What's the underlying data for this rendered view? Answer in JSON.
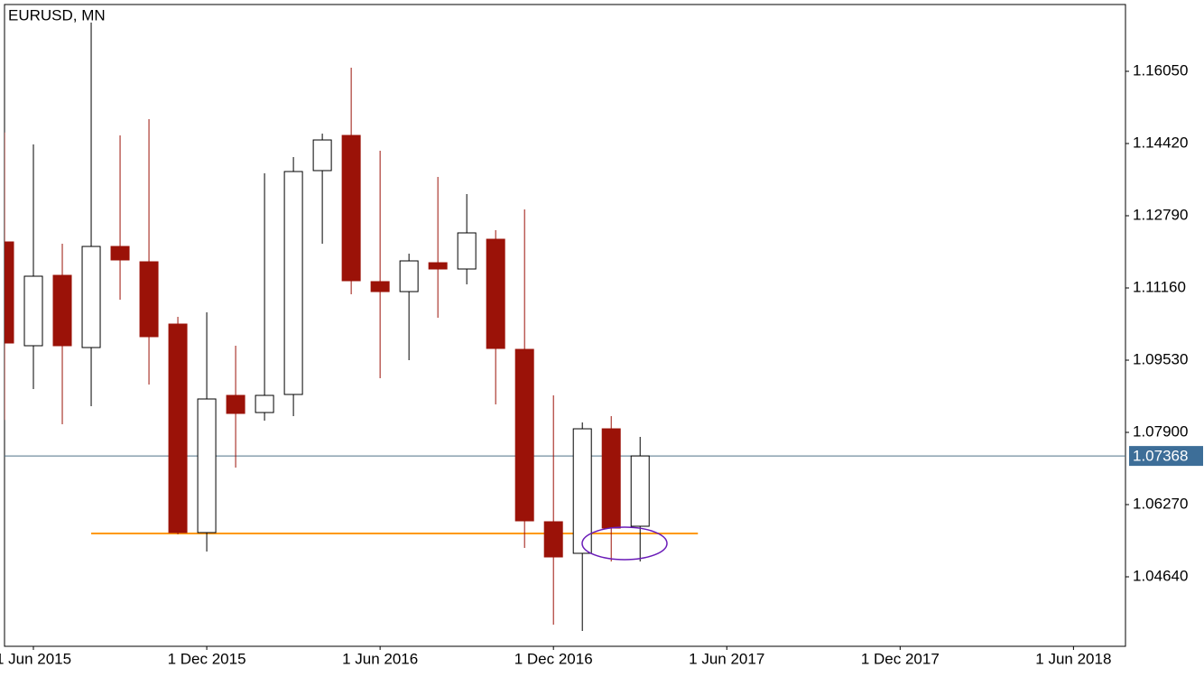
{
  "chart_data": {
    "type": "candlestick",
    "title": "EURUSD, MN",
    "x": [
      "2015-05-01",
      "2015-06-01",
      "2015-07-01",
      "2015-08-01",
      "2015-09-01",
      "2015-10-01",
      "2015-11-01",
      "2015-12-01",
      "2016-01-01",
      "2016-02-01",
      "2016-03-01",
      "2016-04-01",
      "2016-05-01",
      "2016-06-01",
      "2016-07-01",
      "2016-08-01",
      "2016-09-01",
      "2016-10-01",
      "2016-11-01",
      "2016-12-01",
      "2017-01-01",
      "2017-02-01",
      "2017-03-01"
    ],
    "open": [
      1.12199,
      1.09856,
      1.11445,
      1.09815,
      1.12097,
      1.11751,
      1.10345,
      1.05638,
      1.08735,
      1.08348,
      1.08756,
      1.13809,
      1.14603,
      1.11303,
      1.11078,
      1.1173,
      1.11588,
      1.1226,
      1.09774,
      1.05883,
      1.0517,
      1.07981,
      1.05781
    ],
    "high": [
      1.1467,
      1.144,
      1.12158,
      1.1715,
      1.14603,
      1.1497,
      1.10508,
      1.1061,
      1.09856,
      1.13748,
      1.14114,
      1.14644,
      1.16132,
      1.14257,
      1.11934,
      1.13666,
      1.13279,
      1.12464,
      1.12933,
      1.08735,
      1.08124,
      1.08267,
      1.07798
    ],
    "low": [
      1.0818,
      1.08878,
      1.08083,
      1.08491,
      1.10895,
      1.0898,
      1.05598,
      1.0521,
      1.07105,
      1.08165,
      1.08267,
      1.12158,
      1.11017,
      1.09122,
      1.0953,
      1.10488,
      1.11241,
      1.08532,
      1.05292,
      1.0356,
      1.03417,
      1.04986,
      1.04986
    ],
    "close": [
      1.09917,
      1.11425,
      1.09856,
      1.12097,
      1.11792,
      1.1006,
      1.05638,
      1.08654,
      1.08328,
      1.08735,
      1.13788,
      1.14501,
      1.11323,
      1.11078,
      1.11771,
      1.11588,
      1.12403,
      1.09795,
      1.05903,
      1.05088,
      1.07981,
      1.0574,
      1.07368
    ],
    "up_color": "#ffffff",
    "down_color": "#9b1208",
    "current_price": 1.07368,
    "level": {
      "value": 1.05618,
      "color": "#ff9900",
      "from": "2015-08-01",
      "to": "2017-05-01"
    },
    "xlim": [
      "2015-05-01",
      "2018-07-25"
    ],
    "xticks": [
      {
        "value": "2015-06-01",
        "label": "1 Jun 2015"
      },
      {
        "value": "2015-12-01",
        "label": "1 Dec 2015"
      },
      {
        "value": "2016-06-01",
        "label": "1 Jun 2016"
      },
      {
        "value": "2016-12-01",
        "label": "1 Dec 2016"
      },
      {
        "value": "2017-06-01",
        "label": "1 Jun 2017"
      },
      {
        "value": "2017-12-01",
        "label": "1 Dec 2017"
      },
      {
        "value": "2018-06-01",
        "label": "1 Jun 2018"
      }
    ],
    "ylim": [
      1.03071,
      1.17558
    ],
    "yticks": [
      {
        "value": 1.1605,
        "label": "1.16050"
      },
      {
        "value": 1.1442,
        "label": "1.14420"
      },
      {
        "value": 1.1279,
        "label": "1.12790"
      },
      {
        "value": 1.1116,
        "label": "1.11160"
      },
      {
        "value": 1.0953,
        "label": "1.09530"
      },
      {
        "value": 1.079,
        "label": "1.07900"
      },
      {
        "value": 1.0627,
        "label": "1.06270"
      },
      {
        "value": 1.0464,
        "label": "1.04640"
      }
    ],
    "grid": false
  }
}
